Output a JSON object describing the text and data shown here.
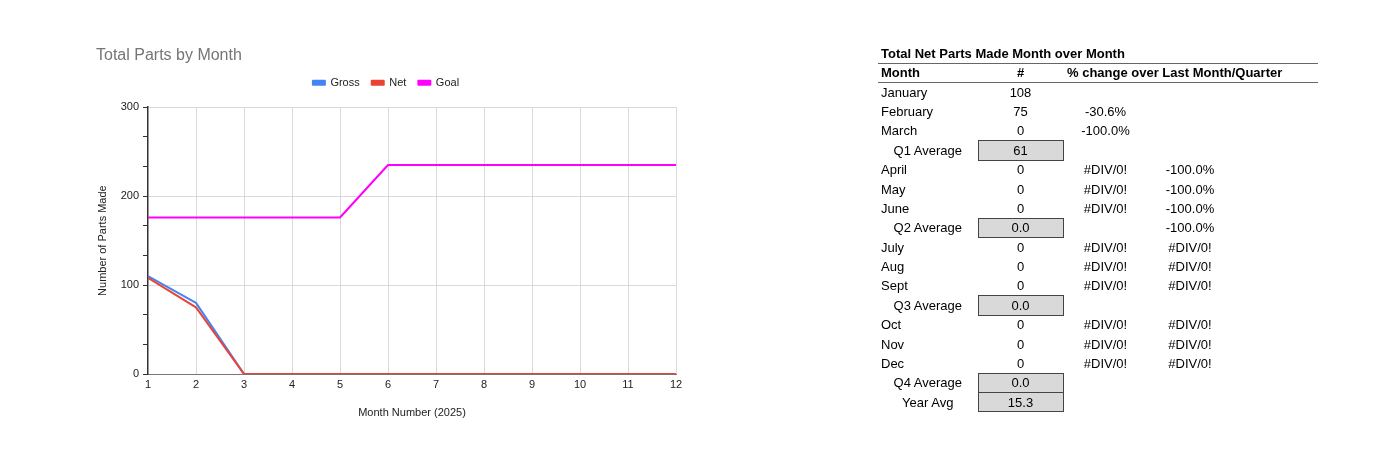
{
  "chart_data": [
    {
      "type": "line",
      "title": "Total Parts by Month",
      "xlabel": "Month Number (2025)",
      "ylabel": "Number of Parts Made",
      "x": [
        1,
        2,
        3,
        4,
        5,
        6,
        7,
        8,
        9,
        10,
        11,
        12
      ],
      "series": [
        {
          "name": "Gross",
          "color": "#4285f4",
          "values": [
            110,
            80,
            0,
            null,
            null,
            null,
            null,
            null,
            null,
            null,
            null,
            null
          ]
        },
        {
          "name": "Net",
          "color": "#ea4335",
          "values": [
            108,
            75,
            0,
            0,
            0,
            0,
            0,
            0,
            0,
            0,
            0,
            0
          ]
        },
        {
          "name": "Goal",
          "color": "#ff00ff",
          "values": [
            176,
            176,
            176,
            176,
            176,
            235,
            235,
            235,
            235,
            235,
            235,
            235
          ]
        }
      ],
      "xlim": [
        1,
        12
      ],
      "xticks": [
        1,
        2,
        3,
        4,
        5,
        6,
        7,
        8,
        9,
        10,
        11,
        12
      ],
      "ylim": [
        0,
        300
      ],
      "yticks": [
        0,
        {
          "value": 33.3,
          "label": null
        },
        {
          "value": 66.7,
          "label": null
        },
        100,
        {
          "value": 133.3,
          "label": null
        },
        {
          "value": 166.7,
          "label": null
        },
        200,
        {
          "value": 233.3,
          "label": null
        },
        {
          "value": 266.7,
          "label": null
        },
        300
      ],
      "grid": true,
      "legend": "top",
      "marker": "none",
      "line_style": "solid"
    },
    {
      "type": "other",
      "title": "Total Net Parts Made Month over Month",
      "ylabel": "Month",
      "categories": [
        "January",
        "February",
        "March",
        "Q1 Average",
        "April",
        "May",
        "June",
        "Q2 Average",
        "July",
        "Aug",
        "Sept",
        "Q3 Average",
        "Oct",
        "Nov",
        "Dec",
        "Q4 Average",
        "Year Avg"
      ],
      "series": [
        {
          "name": "#",
          "values": [
            108,
            75,
            0,
            61,
            0,
            0,
            0,
            0,
            0,
            0,
            0,
            0,
            0,
            0,
            0,
            0,
            15.3
          ],
          "value_labels": [
            "108",
            "75",
            "0",
            "61",
            "0",
            "0",
            "0",
            "0.0",
            "0",
            "0",
            "0",
            "0.0",
            "0",
            "0",
            "0",
            "0.0",
            "15.3"
          ],
          "colors": [
            null,
            null,
            null,
            "#d9d9d9",
            null,
            null,
            null,
            "#d9d9d9",
            null,
            null,
            null,
            "#d9d9d9",
            null,
            null,
            null,
            "#d9d9d9",
            "#d9d9d9"
          ]
        },
        {
          "name": "% change over Last Month/Quarter",
          "values": [
            null,
            -30.6,
            -100,
            null,
            null,
            null,
            null,
            null,
            null,
            null,
            null,
            null,
            null,
            null,
            null,
            null,
            null
          ],
          "value_labels": [
            null,
            "-30.6%",
            "-100.0%",
            null,
            "#DIV/0!",
            "#DIV/0!",
            "#DIV/0!",
            null,
            "#DIV/0!",
            "#DIV/0!",
            "#DIV/0!",
            null,
            "#DIV/0!",
            "#DIV/0!",
            "#DIV/0!",
            null,
            null
          ]
        },
        {
          "values": [
            null,
            null,
            null,
            null,
            -100,
            -100,
            -100,
            -100,
            null,
            null,
            null,
            null,
            null,
            null,
            null,
            null,
            null
          ],
          "value_labels": [
            null,
            null,
            null,
            null,
            "-100.0%",
            "-100.0%",
            "-100.0%",
            "-100.0%",
            "#DIV/0!",
            "#DIV/0!",
            "#DIV/0!",
            null,
            "#DIV/0!",
            "#DIV/0!",
            "#DIV/0!",
            null,
            null
          ]
        }
      ]
    }
  ]
}
